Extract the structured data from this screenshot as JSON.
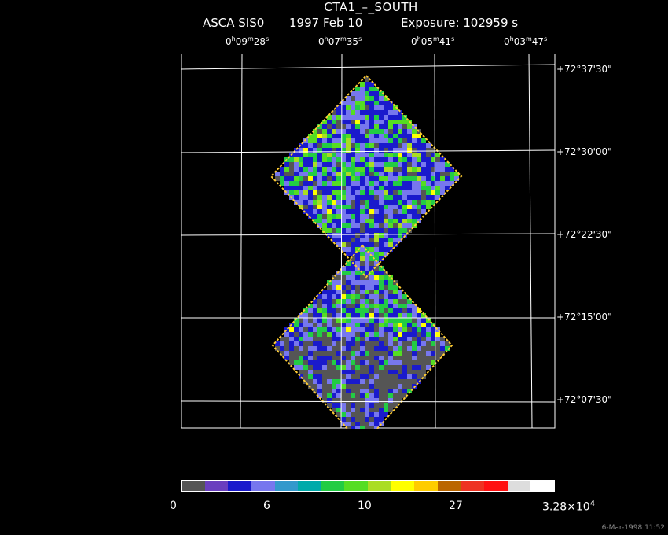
{
  "header": {
    "title": "CTA1_–_SOUTH",
    "instrument": "ASCA SIS0",
    "date": "1997 Feb 10",
    "exposure": "Exposure: 102959 s"
  },
  "ra_ticks": [
    {
      "h": "0",
      "m": "09",
      "s": "28"
    },
    {
      "h": "0",
      "m": "07",
      "s": "35"
    },
    {
      "h": "0",
      "m": "05",
      "s": "41"
    },
    {
      "h": "0",
      "m": "03",
      "s": "47"
    }
  ],
  "dec_ticks": [
    "+72°37'30\"",
    "+72°30'00\"",
    "+72°22'30\"",
    "+72°15'00\"",
    "+72°07'30\""
  ],
  "colorbar": {
    "labels": [
      "0",
      "6",
      "10",
      "27"
    ],
    "max_mantissa": "3.28×10",
    "max_exp": "4",
    "colors": [
      "#555555",
      "#6a3fbf",
      "#1a1acc",
      "#7777ee",
      "#3399cc",
      "#00aaaa",
      "#22cc44",
      "#55dd22",
      "#aadd22",
      "#ffff00",
      "#ffcc00",
      "#bb6600",
      "#ee3322",
      "#ff1111",
      "#dddddd",
      "#ffffff"
    ]
  },
  "footer": {
    "timestamp": "6-Mar-1998 11:52"
  }
}
